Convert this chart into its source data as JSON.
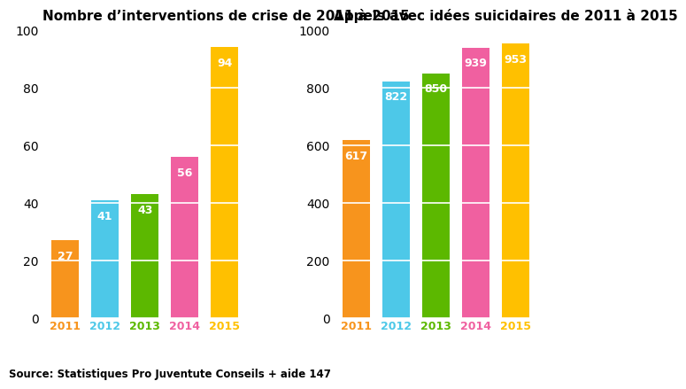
{
  "left_title": "Nombre d’interventions de crise de 2011 à 2015",
  "right_title": "Appels avec idées suicidaires de 2011 à 2015",
  "years": [
    "2011",
    "2012",
    "2013",
    "2014",
    "2015"
  ],
  "left_values": [
    27,
    41,
    43,
    56,
    94
  ],
  "right_values": [
    617,
    822,
    850,
    939,
    953
  ],
  "colors": [
    "#F7941D",
    "#4DC8E8",
    "#5CB800",
    "#F060A0",
    "#FFC000"
  ],
  "left_ylim": [
    0,
    100
  ],
  "right_ylim": [
    0,
    1000
  ],
  "left_yticks": [
    0,
    20,
    40,
    60,
    80,
    100
  ],
  "right_yticks": [
    0,
    200,
    400,
    600,
    800,
    1000
  ],
  "source": "Source: Statistiques Pro Juventute Conseils + aide 147",
  "background_color": "#FFFFFF",
  "grid_color": "#FFFFFF",
  "label_fontsize": 10,
  "title_fontsize": 11,
  "value_fontsize": 9,
  "year_fontsize": 9,
  "source_fontsize": 8.5
}
